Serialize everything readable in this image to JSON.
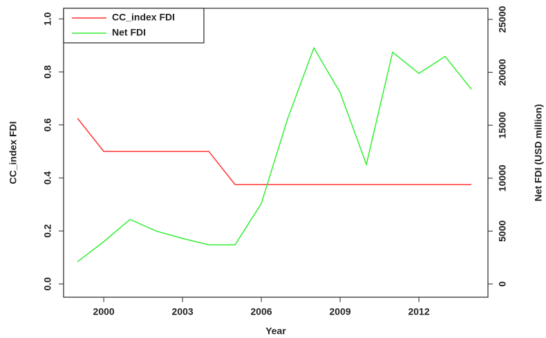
{
  "chart_data": {
    "type": "line",
    "x_label": "Year",
    "y_label": "CC_index FDI",
    "y2_label": "Net FDI (USD million)",
    "x": [
      1999,
      2000,
      2001,
      2002,
      2003,
      2004,
      2005,
      2006,
      2007,
      2008,
      2009,
      2010,
      2011,
      2012,
      2013,
      2014
    ],
    "series": [
      {
        "name": "CC_index FDI",
        "color": "#ff3030",
        "values": [
          0.625,
          0.5,
          0.5,
          0.5,
          0.5,
          0.5,
          0.375,
          0.375,
          0.375,
          0.375,
          0.375,
          0.375,
          0.375,
          0.375,
          0.375,
          0.375
        ]
      },
      {
        "name": "Net FDI",
        "color": "#33ee33",
        "axis": "y2",
        "values": [
          2100,
          4000,
          6100,
          5000,
          4300,
          3700,
          3700,
          7600,
          15600,
          22300,
          18100,
          11300,
          21900,
          19900,
          21500,
          18400
        ]
      }
    ],
    "xlim": [
      1998.47,
      2014.63
    ],
    "xticks": [
      2000,
      2003,
      2006,
      2009,
      2012
    ],
    "ylim": [
      -0.05,
      1.04
    ],
    "yticks": [
      {
        "value": 0,
        "label": "0.0"
      },
      0.2,
      0.4,
      0.6,
      0.8,
      {
        "value": 1,
        "label": "1.0"
      }
    ],
    "y2lim": [
      -1250,
      26050
    ],
    "y2ticks": [
      0,
      5000,
      10000,
      15000,
      20000,
      25000
    ],
    "legend": "topleft"
  }
}
